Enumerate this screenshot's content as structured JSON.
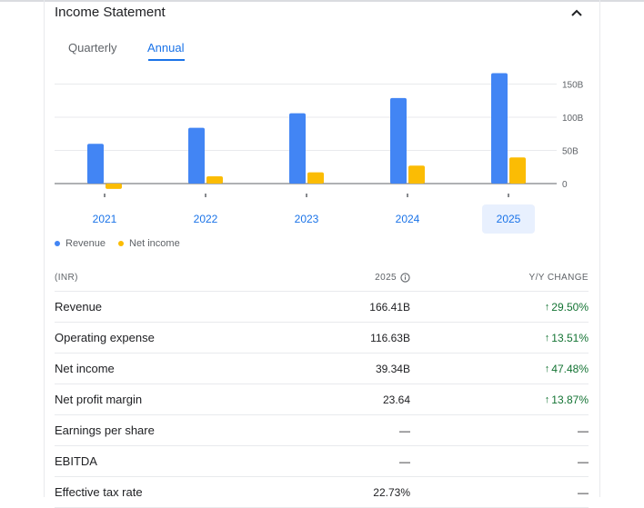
{
  "header": {
    "title": "Income Statement"
  },
  "tabs": [
    {
      "label": "Quarterly",
      "active": false
    },
    {
      "label": "Annual",
      "active": true
    }
  ],
  "colors": {
    "revenue": "#4285f4",
    "net_income": "#fbbc04",
    "accent": "#1a73e8",
    "positive": "#137333"
  },
  "chart_data": {
    "type": "bar",
    "categories": [
      "2021",
      "2022",
      "2023",
      "2024",
      "2025"
    ],
    "selected_category": "2025",
    "series": [
      {
        "name": "Revenue",
        "values": [
          60,
          84,
          106,
          129,
          166.41
        ]
      },
      {
        "name": "Net income",
        "values": [
          -8,
          11,
          17,
          27,
          39.34
        ]
      }
    ],
    "yticks": [
      "150B",
      "100B",
      "50B",
      "0"
    ],
    "ytick_values": [
      150,
      100,
      50,
      0
    ],
    "ylim": [
      -12,
      170
    ],
    "legend_position": "bottom-left"
  },
  "table": {
    "headers": {
      "label": "(INR)",
      "value": "2025",
      "change": "Y/Y CHANGE"
    },
    "rows": [
      {
        "label": "Revenue",
        "value": "166.41B",
        "change": "29.50%",
        "up": true
      },
      {
        "label": "Operating expense",
        "value": "116.63B",
        "change": "13.51%",
        "up": true
      },
      {
        "label": "Net income",
        "value": "39.34B",
        "change": "47.48%",
        "up": true
      },
      {
        "label": "Net profit margin",
        "value": "23.64",
        "change": "13.87%",
        "up": true
      },
      {
        "label": "Earnings per share",
        "value": "—",
        "change": "—",
        "up": false
      },
      {
        "label": "EBITDA",
        "value": "—",
        "change": "—",
        "up": false
      },
      {
        "label": "Effective tax rate",
        "value": "22.73%",
        "change": "—",
        "up": false
      }
    ]
  }
}
